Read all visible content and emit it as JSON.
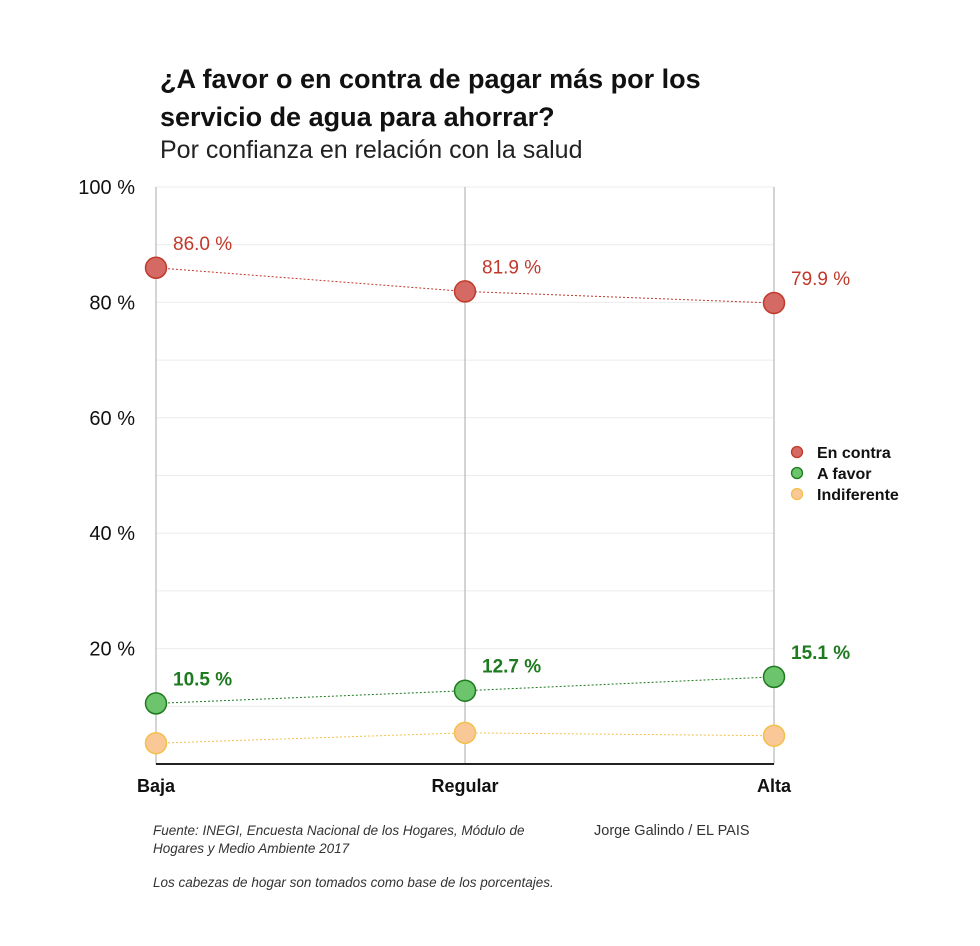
{
  "chart_data": {
    "type": "line",
    "title": "¿A favor o en contra de pagar más por los servicio de agua para ahorrar?",
    "subtitle": "Por confianza en relación con la salud",
    "categories": [
      "Baja",
      "Regular",
      "Alta"
    ],
    "ylim": [
      0,
      100
    ],
    "yticks": [
      20,
      40,
      60,
      80,
      100
    ],
    "ytick_labels": [
      "20 %",
      "40 %",
      "60 %",
      "80 %",
      "100 %"
    ],
    "grid": true,
    "legend_position": "right",
    "series": [
      {
        "name": "En contra",
        "values": [
          86.0,
          81.9,
          79.9
        ],
        "labels": [
          "86.0 %",
          "81.9 %",
          "79.9 %"
        ],
        "color": "#c0392b",
        "fill": "#d46a63"
      },
      {
        "name": "A favor",
        "values": [
          10.5,
          12.7,
          15.1
        ],
        "labels": [
          "10.5 %",
          "12.7 %",
          "15.1 %"
        ],
        "color": "#1e7a1e",
        "fill": "#6cc46c"
      },
      {
        "name": "Indiferente",
        "values": [
          3.6,
          5.4,
          4.9
        ],
        "labels": [],
        "color": "#f3c04a",
        "fill": "#f9c896"
      }
    ]
  },
  "footer": {
    "source": "Fuente: INEGI, Encuesta Nacional de los Hogares, Módulo de Hogares y Medio Ambiente 2017",
    "note": "Los cabezas de hogar son tomados como base de los porcentajes.",
    "author": "Jorge Galindo / EL PAIS"
  }
}
